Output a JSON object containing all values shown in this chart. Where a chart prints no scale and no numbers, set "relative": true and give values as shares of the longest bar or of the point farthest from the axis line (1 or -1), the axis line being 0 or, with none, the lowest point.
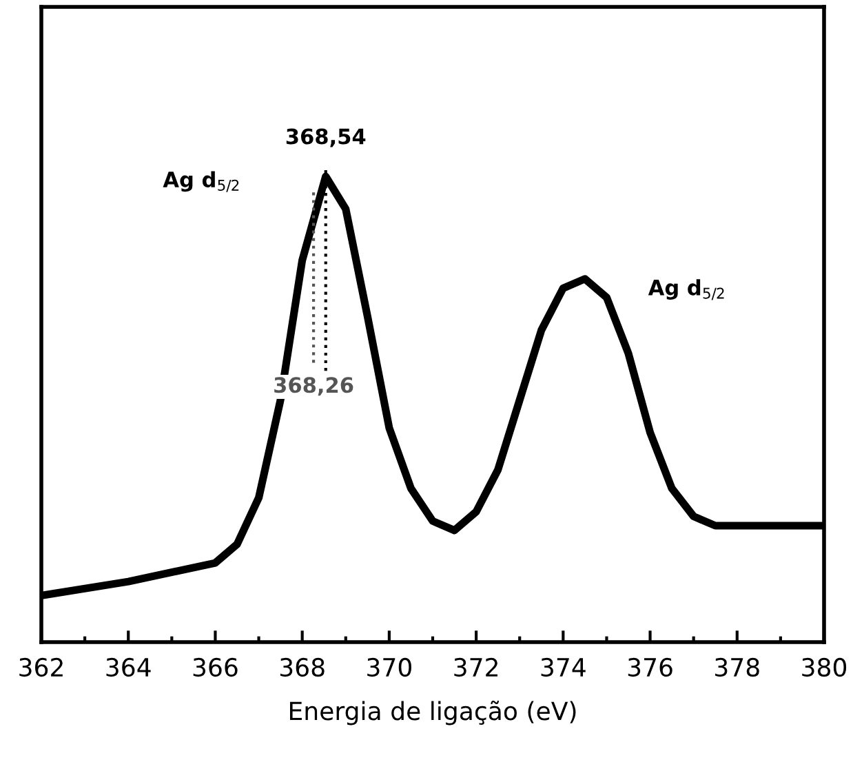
{
  "chart_data": {
    "type": "line",
    "relative": true,
    "xlabel": "Energia de ligação (eV)",
    "x": [
      362,
      364,
      366,
      366.5,
      367,
      367.5,
      368,
      368.54,
      369,
      369.5,
      370,
      370.5,
      371,
      371.5,
      372,
      372.5,
      373,
      373.5,
      374,
      374.5,
      375,
      375.5,
      376,
      376.5,
      377,
      377.5,
      378,
      379,
      380
    ],
    "series": [
      {
        "color": "#000000",
        "values": [
          0.1,
          0.13,
          0.17,
          0.21,
          0.31,
          0.52,
          0.82,
          1.0,
          0.93,
          0.7,
          0.46,
          0.33,
          0.26,
          0.24,
          0.28,
          0.37,
          0.52,
          0.67,
          0.76,
          0.78,
          0.74,
          0.62,
          0.45,
          0.33,
          0.27,
          0.25,
          0.25,
          0.25,
          0.25
        ]
      }
    ],
    "xlim": [
      362,
      380
    ],
    "xticks": [
      362,
      364,
      366,
      368,
      370,
      372,
      374,
      376,
      378,
      380
    ],
    "grid": false,
    "legend": false,
    "marker": "none",
    "line_style": "solid",
    "ref_lines": [
      {
        "axis": "x",
        "value": 368.54,
        "label": "368,54",
        "color": "#000000",
        "line_style": "dotted"
      },
      {
        "axis": "x",
        "value": 368.26,
        "label": "368,26",
        "color": "#555555",
        "line_style": "dotted"
      }
    ],
    "annotations": [
      "Ag d$_{5/2}$",
      "Ag d$_{5/2}$"
    ]
  }
}
